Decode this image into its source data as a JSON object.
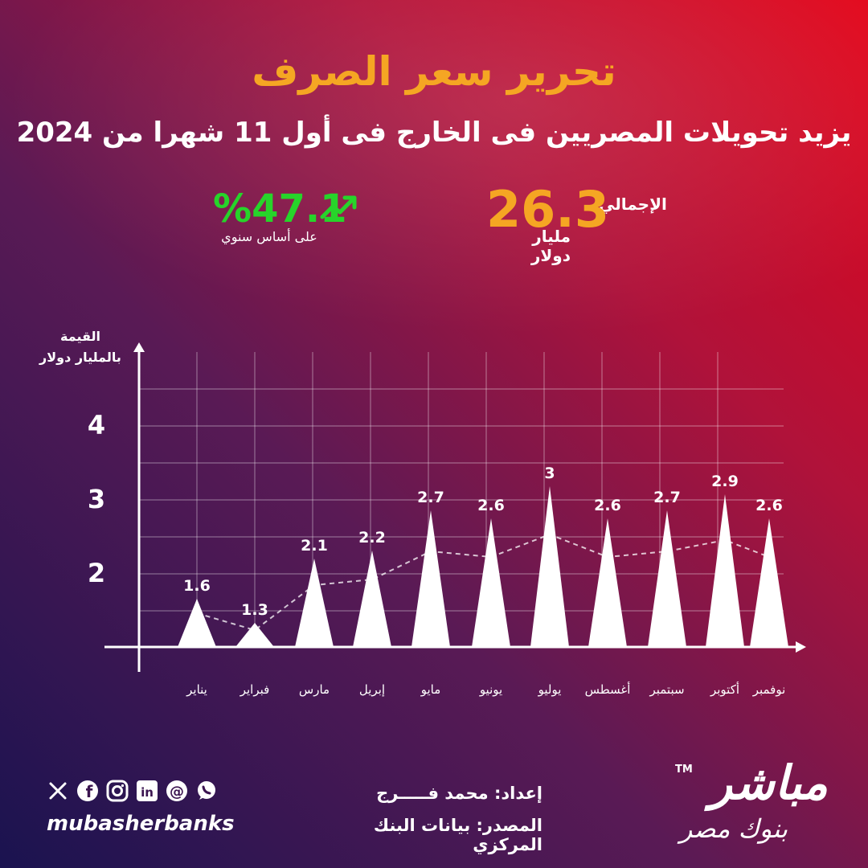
{
  "header": {
    "title": "تحرير سعر الصرف",
    "subtitle": "يزيد تحويلات المصريين فى الخارج فى أول 11 شهرا من 2024"
  },
  "stats": {
    "total_label": "الإجمالي",
    "total_value": "26.3",
    "total_unit": "مليار دولار",
    "growth_value": "%47.1",
    "growth_note": "على أساس سنوي",
    "growth_icon": "trend-up-icon"
  },
  "colors": {
    "accent": "#f5a623",
    "growth": "#27d42a",
    "bar": "#ffffff"
  },
  "chart_data": {
    "type": "bar",
    "ylabel": "القيمة بالمليار دولار",
    "yticks": [
      2,
      3,
      4
    ],
    "categories": [
      "يناير",
      "فبراير",
      "مارس",
      "إبريل",
      "مايو",
      "يونيو",
      "يوليو",
      "أغسطس",
      "سبتمبر",
      "أكتوبر",
      "نوفمبر"
    ],
    "values": [
      1.6,
      1.3,
      2.1,
      2.2,
      2.7,
      2.6,
      3,
      2.6,
      2.7,
      2.9,
      2.6
    ],
    "grid": true,
    "trend_line": "dashed"
  },
  "footer": {
    "social_icons": [
      "x-icon",
      "facebook-icon",
      "instagram-icon",
      "linkedin-icon",
      "threads-icon",
      "whatsapp-icon"
    ],
    "handle": "mubasherbanks",
    "prepared_by": "إعداد: محمد فـــــرج",
    "source": "المصدر: بيانات البنك المركزي",
    "logo_main": "مباشر",
    "logo_tm": "TM",
    "logo_sub": "بنوك مصر"
  }
}
